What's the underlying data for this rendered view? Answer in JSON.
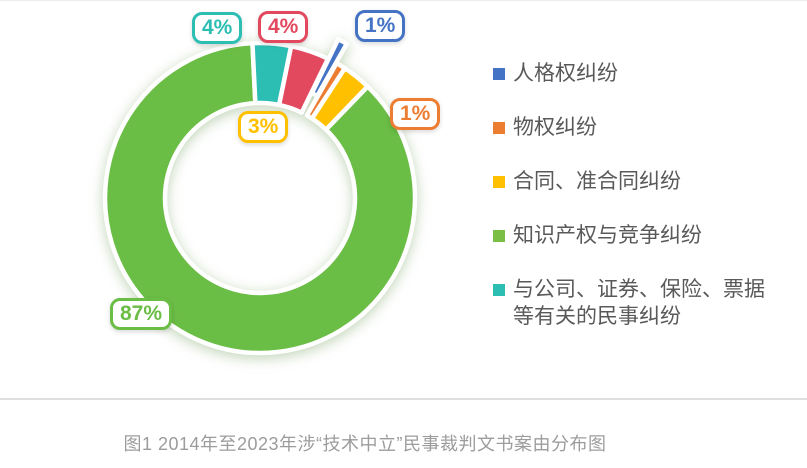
{
  "chart_data": {
    "type": "pie",
    "subtype": "donut",
    "title": "",
    "legend_position": "right",
    "start_angle_deg": 26,
    "donut_hole_ratio": 0.61,
    "slices": [
      {
        "id": "personality-rights",
        "label": "人格权纠纷",
        "value": 1,
        "pct_label": "1%",
        "color": "#4472C4",
        "exploded": true
      },
      {
        "id": "property-rights",
        "label": "物权纠纷",
        "value": 1,
        "pct_label": "1%",
        "color": "#ED7D31",
        "exploded": false
      },
      {
        "id": "contract",
        "label": "合同、准合同纠纷",
        "value": 3,
        "pct_label": "3%",
        "color": "#FFC000",
        "exploded": false
      },
      {
        "id": "ip-competition",
        "label": "知识产权与竞争纠纷",
        "value": 87,
        "pct_label": "87%",
        "color": "#6ABD45",
        "exploded": false
      },
      {
        "id": "company-securities",
        "label": "与公司、证券、保险、票据等有关的民事纠纷",
        "value": 4,
        "pct_label": "4%",
        "color": "#2CBEB3",
        "exploded": false
      },
      {
        "id": "unlabeled-red",
        "label": "",
        "value": 4,
        "pct_label": "4%",
        "color": "#E2495F",
        "exploded": false
      }
    ]
  },
  "legend": {
    "items": [
      {
        "label": "人格权纠纷",
        "color": "#4472C4"
      },
      {
        "label": "物权纠纷",
        "color": "#ED7D31"
      },
      {
        "label": "合同、准合同纠纷",
        "color": "#FFC000"
      },
      {
        "label": "知识产权与竞争纠纷",
        "color": "#7ABE45"
      },
      {
        "label": "与公司、证券、保险、票据\n等有关的民事纠纷",
        "color": "#2CBEB3"
      }
    ]
  },
  "caption": {
    "text": "图1 2014年至2023年涉“技术中立”民事裁判文书案由分布图"
  }
}
